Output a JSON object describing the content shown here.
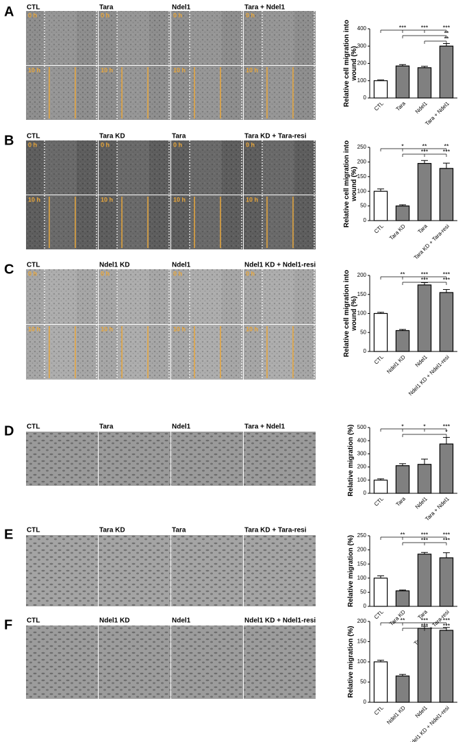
{
  "panels": [
    {
      "letter": "A",
      "image_labels": [
        "CTL",
        "Tara",
        "Ndel1",
        "Tara + Ndel1"
      ],
      "timepoints": [
        "0 h",
        "10 h"
      ]
    },
    {
      "letter": "B",
      "image_labels": [
        "CTL",
        "Tara KD",
        "Tara",
        "Tara KD + Tara-resi"
      ],
      "timepoints": [
        "0 h",
        "10 h"
      ]
    },
    {
      "letter": "C",
      "image_labels": [
        "CTL",
        "Ndel1 KD",
        "Ndel1",
        "Ndel1 KD + Ndel1-resi"
      ],
      "timepoints": [
        "0 h",
        "10 h"
      ]
    },
    {
      "letter": "D",
      "image_labels": [
        "CTL",
        "Tara",
        "Ndel1",
        "Tara + Ndel1"
      ]
    },
    {
      "letter": "E",
      "image_labels": [
        "CTL",
        "Tara KD",
        "Tara",
        "Tara KD + Tara-resi"
      ]
    },
    {
      "letter": "F",
      "image_labels": [
        "CTL",
        "Ndel1 KD",
        "Ndel1",
        "Ndel1 KD + Ndel1-resi"
      ]
    }
  ],
  "chart_data": [
    {
      "type": "bar",
      "y_label": "Relative cell migration into wound (%)",
      "categories": [
        "CTL",
        "Tara",
        "Ndel1",
        "Tara + Ndel1"
      ],
      "values": [
        100,
        185,
        175,
        300
      ],
      "errors": [
        4,
        8,
        8,
        15
      ],
      "colors": [
        "#ffffff",
        "#808080",
        "#808080",
        "#808080"
      ],
      "ylim": [
        0,
        400
      ],
      "yticks": [
        0,
        100,
        200,
        300,
        400
      ],
      "significance": [
        [
          null,
          "***",
          "***",
          "***"
        ],
        [
          null,
          null,
          null,
          "**"
        ],
        [
          null,
          null,
          null,
          "**"
        ]
      ]
    },
    {
      "type": "bar",
      "y_label": "Relative cell migration into wound (%)",
      "categories": [
        "CTL",
        "Tara KD",
        "Tara",
        "Tara KD + Tara-resi"
      ],
      "values": [
        100,
        50,
        195,
        178
      ],
      "errors": [
        8,
        4,
        10,
        18
      ],
      "colors": [
        "#ffffff",
        "#808080",
        "#808080",
        "#808080"
      ],
      "ylim": [
        0,
        250
      ],
      "yticks": [
        0,
        50,
        100,
        150,
        200,
        250
      ],
      "significance": [
        [
          null,
          "*",
          "**",
          "**"
        ],
        [
          null,
          null,
          "***",
          "***"
        ]
      ]
    },
    {
      "type": "bar",
      "y_label": "Relative cell migration into wound (%)",
      "categories": [
        "CTL",
        "Ndel1 KD",
        "Ndel1",
        "Ndel1 KD + Ndel1-resi"
      ],
      "values": [
        100,
        55,
        175,
        155
      ],
      "errors": [
        3,
        3,
        6,
        8
      ],
      "colors": [
        "#ffffff",
        "#808080",
        "#808080",
        "#808080"
      ],
      "ylim": [
        0,
        200
      ],
      "yticks": [
        0,
        50,
        100,
        150,
        200
      ],
      "significance": [
        [
          null,
          "**",
          "***",
          "***"
        ],
        [
          null,
          null,
          "***",
          "***"
        ]
      ]
    },
    {
      "type": "bar",
      "y_label": "Relative migration (%)",
      "categories": [
        "CTL",
        "Tara",
        "Ndel1",
        "Tara + Ndel1"
      ],
      "values": [
        100,
        210,
        220,
        375
      ],
      "errors": [
        10,
        15,
        40,
        50
      ],
      "colors": [
        "#ffffff",
        "#808080",
        "#808080",
        "#808080"
      ],
      "ylim": [
        0,
        500
      ],
      "yticks": [
        0,
        100,
        200,
        300,
        400,
        500
      ],
      "significance": [
        [
          null,
          "*",
          "*",
          "***"
        ],
        [
          null,
          null,
          null,
          "*"
        ]
      ]
    },
    {
      "type": "bar",
      "y_label": "Relative migration (%)",
      "categories": [
        "CTL",
        "Tara KD",
        "Tara",
        "Tara KD + Tara-resi"
      ],
      "values": [
        100,
        55,
        185,
        172
      ],
      "errors": [
        8,
        3,
        6,
        18
      ],
      "colors": [
        "#ffffff",
        "#808080",
        "#808080",
        "#808080"
      ],
      "ylim": [
        0,
        250
      ],
      "yticks": [
        0,
        50,
        100,
        150,
        200,
        250
      ],
      "significance": [
        [
          null,
          "**",
          "***",
          "***"
        ],
        [
          null,
          null,
          "***",
          "***"
        ]
      ]
    },
    {
      "type": "bar",
      "y_label": "Relative migration (%)",
      "categories": [
        "CTL",
        "Ndel1 KD",
        "Ndel1",
        "Ndel1 KD + Ndel1-resi"
      ],
      "values": [
        100,
        65,
        183,
        178
      ],
      "errors": [
        4,
        4,
        5,
        7
      ],
      "colors": [
        "#ffffff",
        "#808080",
        "#808080",
        "#808080"
      ],
      "ylim": [
        0,
        200
      ],
      "yticks": [
        0,
        50,
        100,
        150,
        200
      ],
      "significance": [
        [
          null,
          "**",
          "***",
          "***"
        ],
        [
          null,
          null,
          "***",
          "***"
        ]
      ]
    }
  ]
}
